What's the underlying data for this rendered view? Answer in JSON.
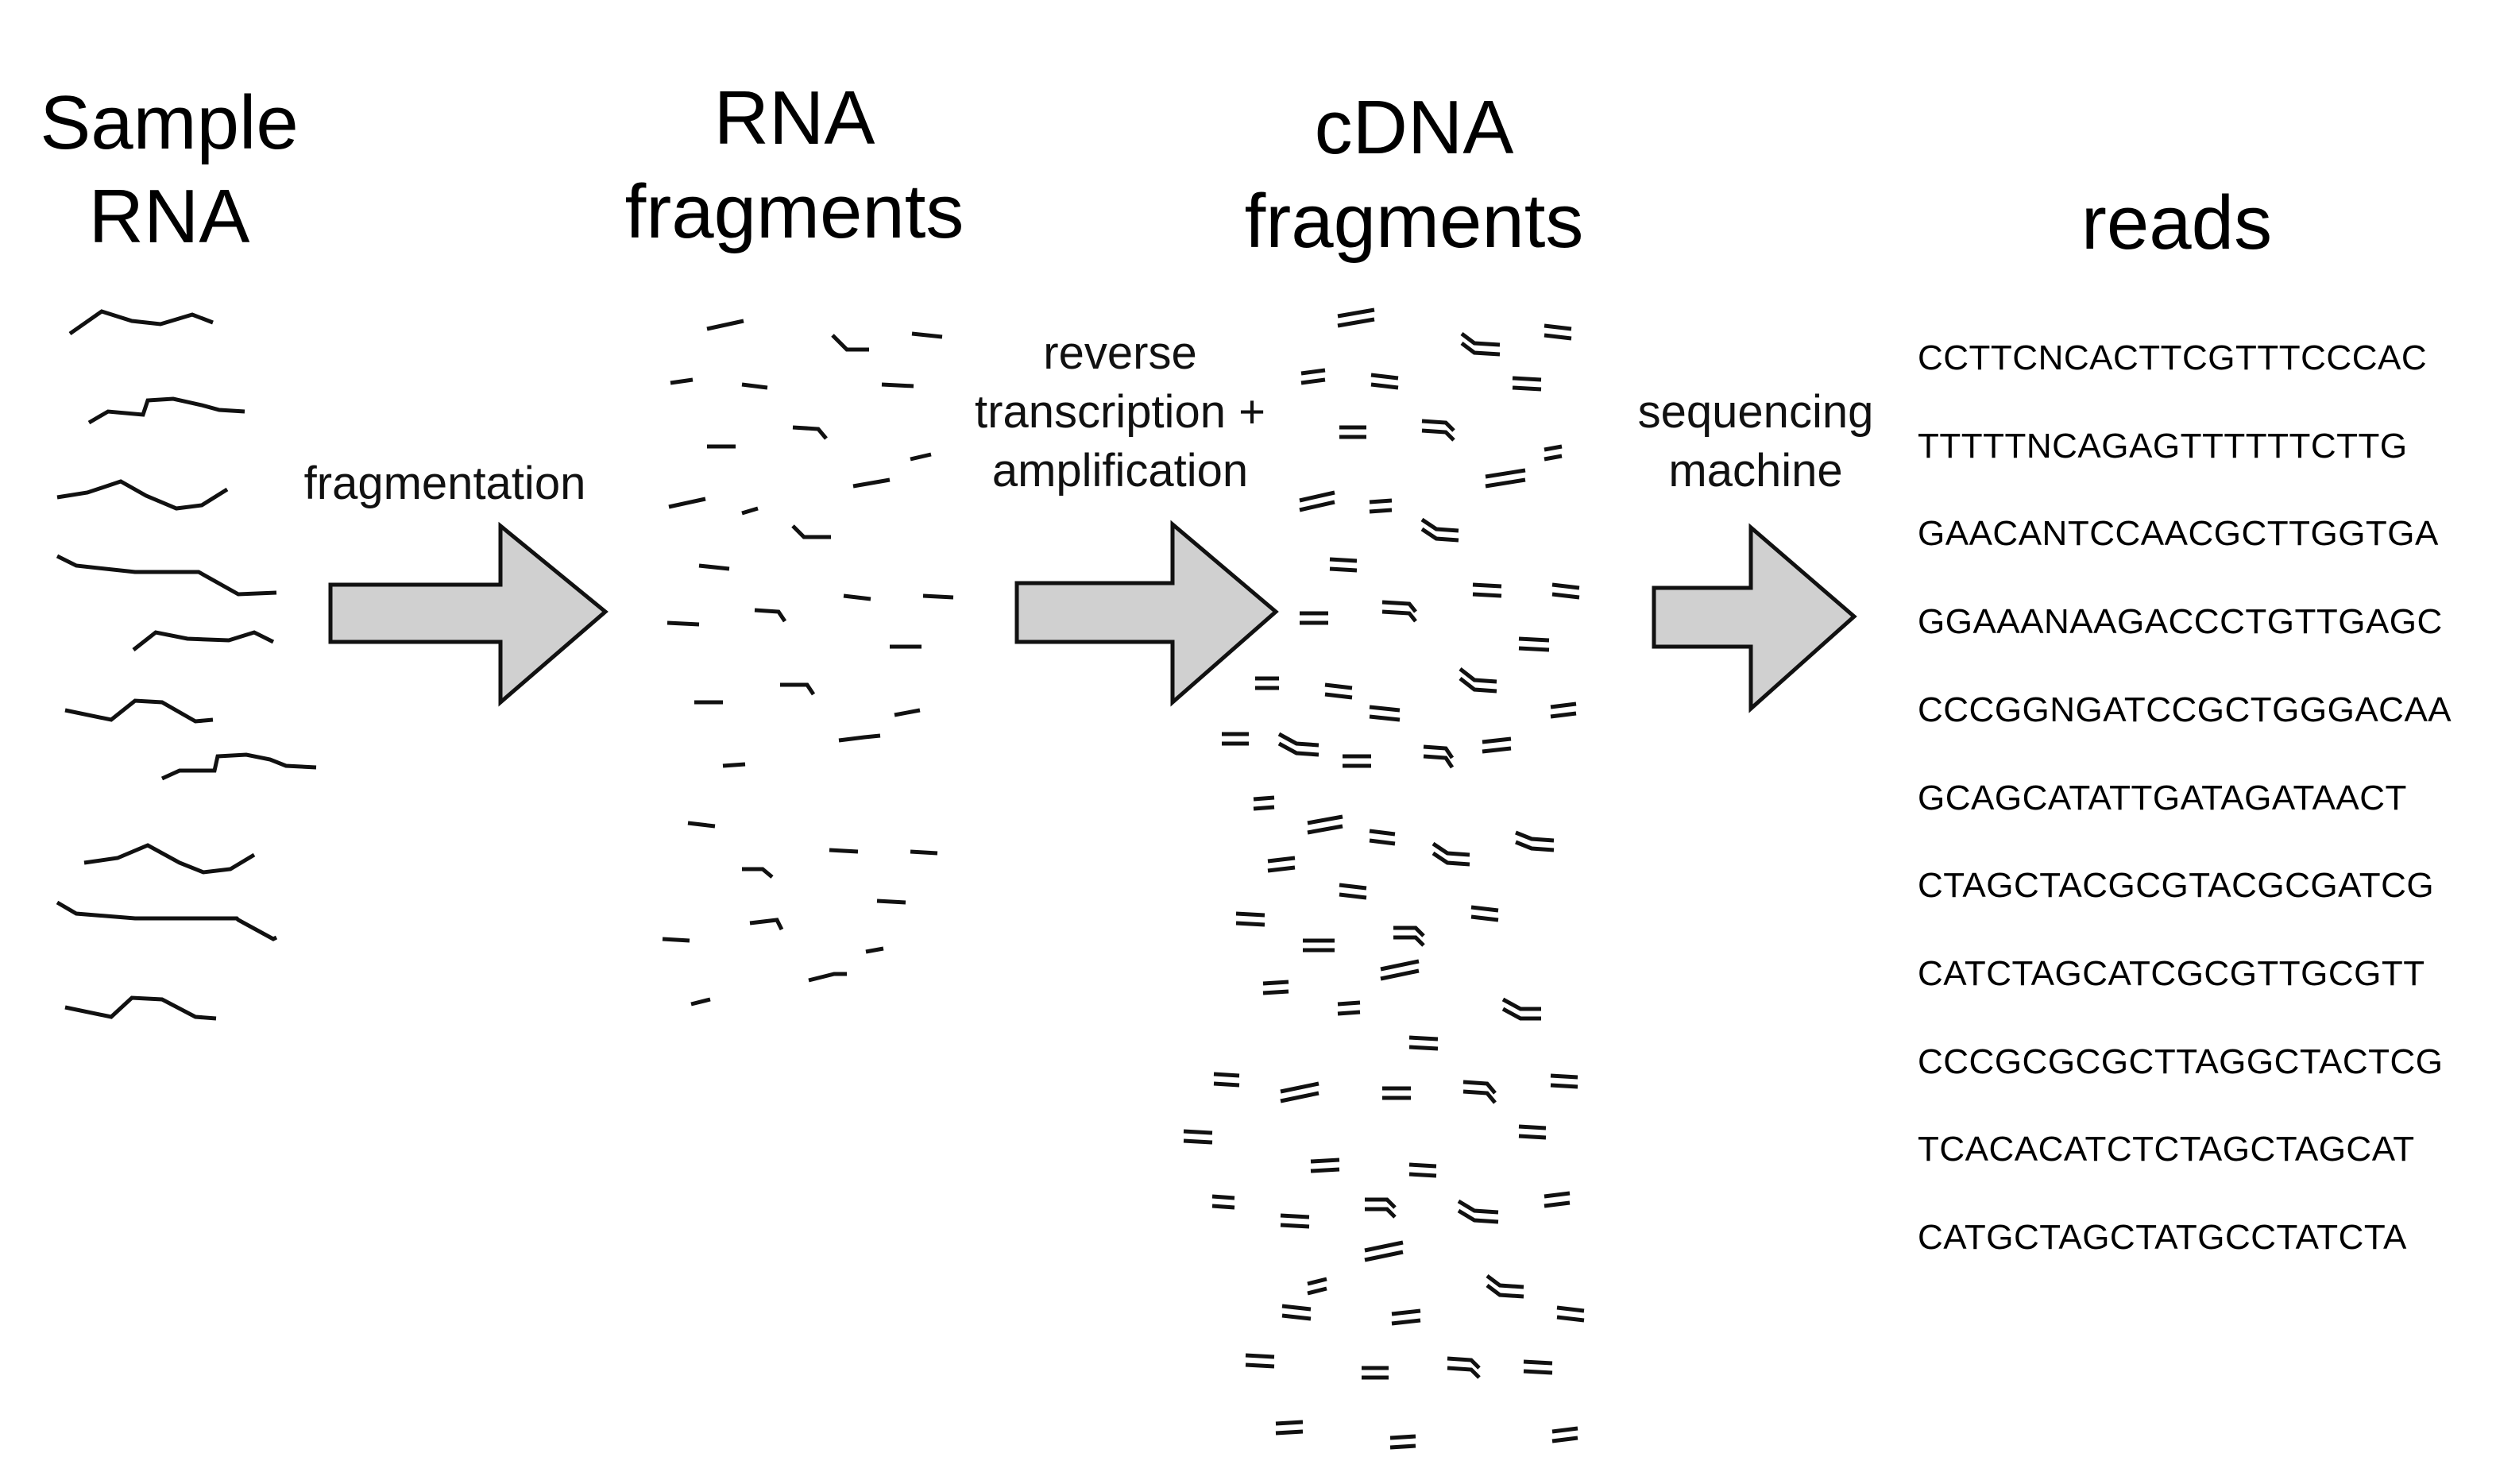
{
  "stages": [
    {
      "id": "sample-rna",
      "lines": [
        "Sample",
        "RNA"
      ]
    },
    {
      "id": "rna-fragments",
      "lines": [
        "RNA",
        "fragments"
      ]
    },
    {
      "id": "cdna-fragments",
      "lines": [
        "cDNA",
        "fragments"
      ]
    },
    {
      "id": "reads",
      "lines": [
        "reads"
      ]
    }
  ],
  "steps": [
    {
      "id": "fragmentation",
      "lines": [
        "fragmentation"
      ]
    },
    {
      "id": "reverse-transcription",
      "lines": [
        "reverse",
        "transcription +",
        "amplification"
      ]
    },
    {
      "id": "sequencing",
      "lines": [
        "sequencing",
        "machine"
      ]
    }
  ],
  "reads": [
    "CCTTCNCACTTCGTTTCCCAC",
    "TTTTTNCAGAGTTTTTTCTTG",
    "GAACANTCCAACGCTTGGTGA",
    "GGAAANAAGACCCTGTTGAGC",
    "CCCGGNGATCCGCTGGGACAA",
    "GCAGCATATTGATAGATAACT",
    "CTAGCTACGCGTACGCGATCG",
    "CATCTAGCATCGCGTTGCGTT",
    "CCCGCGCGCTTAGGCTACTCG",
    "TCACACATCTCTAGCTAGCAT",
    "CATGCTAGCTATGCCTATCTA"
  ],
  "colors": {
    "arrow_fill": "#d0d0d0",
    "stroke": "#111111"
  }
}
